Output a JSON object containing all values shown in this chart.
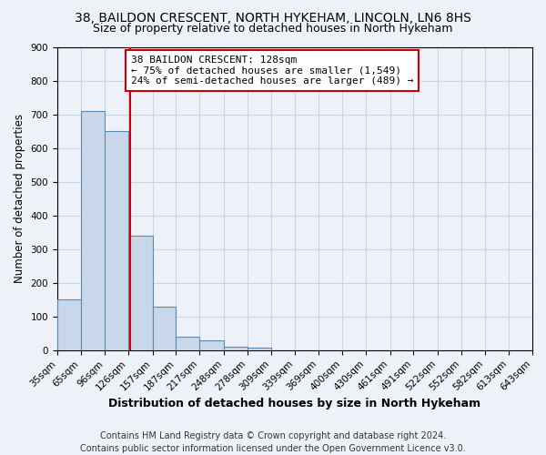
{
  "title1": "38, BAILDON CRESCENT, NORTH HYKEHAM, LINCOLN, LN6 8HS",
  "title2": "Size of property relative to detached houses in North Hykeham",
  "xlabel": "Distribution of detached houses by size in North Hykeham",
  "ylabel": "Number of detached properties",
  "bin_edges": [
    35,
    65,
    96,
    126,
    157,
    187,
    217,
    248,
    278,
    309,
    339,
    369,
    400,
    430,
    461,
    491,
    522,
    552,
    582,
    613,
    643
  ],
  "bar_heights": [
    150,
    710,
    650,
    340,
    130,
    40,
    28,
    10,
    8,
    0,
    0,
    0,
    0,
    0,
    0,
    0,
    0,
    0,
    0,
    0
  ],
  "bar_color": "#c8d8ea",
  "bar_edgecolor": "#5a8ab0",
  "grid_color": "#c8d4e8",
  "bg_color": "#eef2f8",
  "red_line_x": 128,
  "red_line_color": "#cc0000",
  "annotation_line1": "38 BAILDON CRESCENT: 128sqm",
  "annotation_line2": "← 75% of detached houses are smaller (1,549)",
  "annotation_line3": "24% of semi-detached houses are larger (489) →",
  "annotation_box_color": "#ffffff",
  "annotation_box_edgecolor": "#cc0000",
  "ylim": [
    0,
    900
  ],
  "yticks": [
    0,
    100,
    200,
    300,
    400,
    500,
    600,
    700,
    800,
    900
  ],
  "footer_line1": "Contains HM Land Registry data © Crown copyright and database right 2024.",
  "footer_line2": "Contains public sector information licensed under the Open Government Licence v3.0.",
  "title1_fontsize": 10,
  "title2_fontsize": 9,
  "annotation_fontsize": 8,
  "tick_fontsize": 7.5,
  "ylabel_fontsize": 8.5,
  "xlabel_fontsize": 9,
  "footer_fontsize": 7
}
